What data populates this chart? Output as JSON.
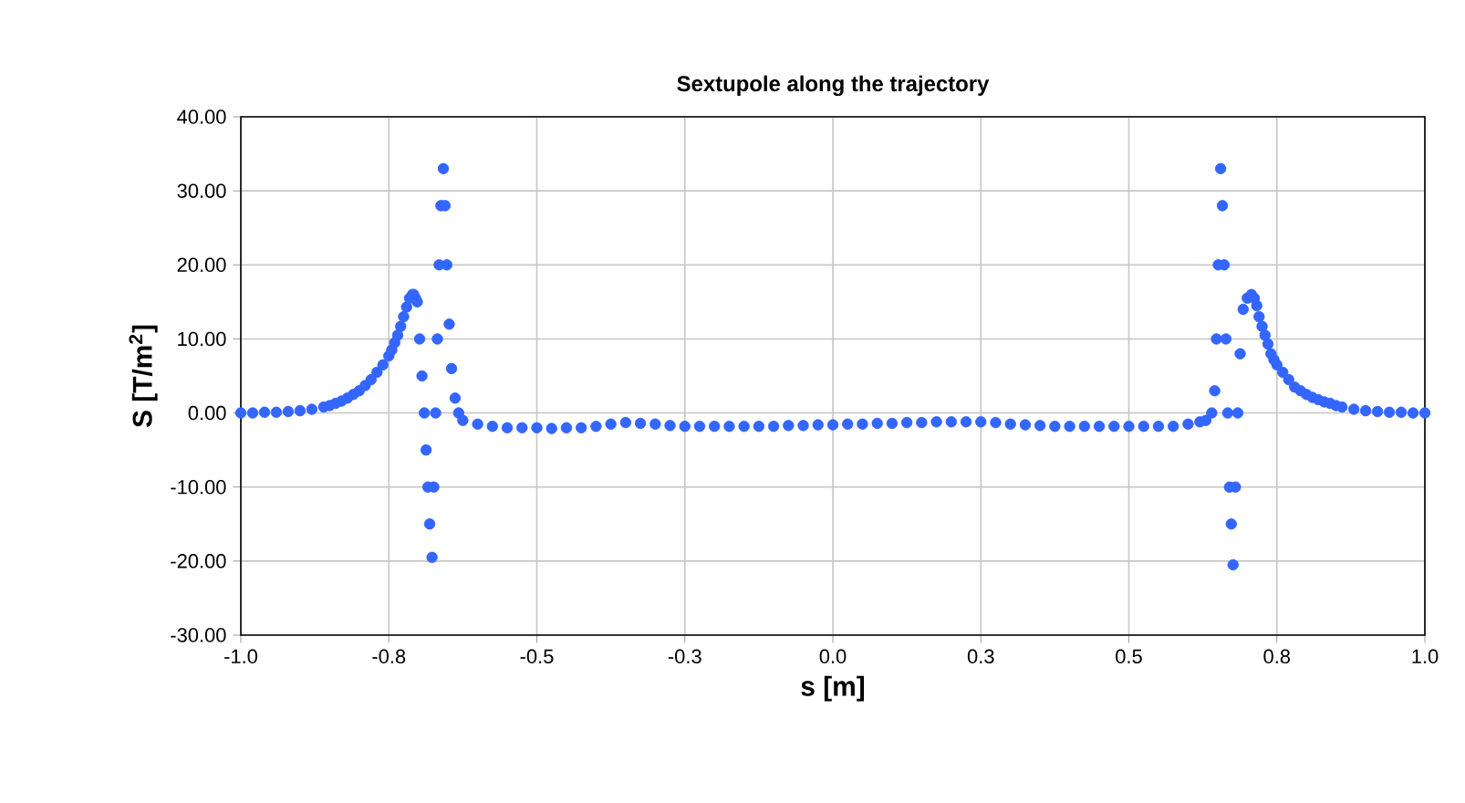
{
  "chart_data": {
    "type": "scatter",
    "title": "Sextupole along the trajectory",
    "xlabel": "s [m]",
    "ylabel": "S [T/m$^{2}$]",
    "xlim": [
      -1,
      1
    ],
    "ylim": [
      -30,
      40
    ],
    "xticks": [
      {
        "value": -1,
        "label": "-1.0"
      },
      {
        "value": -0.75,
        "label": "-0.8"
      },
      {
        "value": -0.5,
        "label": "-0.5"
      },
      {
        "value": -0.25,
        "label": "-0.3"
      },
      {
        "value": 0,
        "label": "0.0"
      },
      {
        "value": 0.25,
        "label": "0.3"
      },
      {
        "value": 0.5,
        "label": "0.5"
      },
      {
        "value": 0.75,
        "label": "0.8"
      },
      {
        "value": 1,
        "label": "1.0"
      }
    ],
    "yticks": [
      {
        "value": -30,
        "label": "-30.00"
      },
      {
        "value": -20,
        "label": "-20.00"
      },
      {
        "value": -10,
        "label": "-10.00"
      },
      {
        "value": 0,
        "label": "0.00"
      },
      {
        "value": 10,
        "label": "10.00"
      },
      {
        "value": 20,
        "label": "20.00"
      },
      {
        "value": 30,
        "label": "30.00"
      },
      {
        "value": 40,
        "label": "40.00"
      }
    ],
    "grid": true,
    "marker": "circle",
    "series": [
      {
        "color": "#3366ff",
        "x": [
          -1.0,
          -0.98,
          -0.96,
          -0.94,
          -0.92,
          -0.9,
          -0.88,
          -0.86,
          -0.85,
          -0.84,
          -0.83,
          -0.82,
          -0.81,
          -0.8,
          -0.79,
          -0.78,
          -0.77,
          -0.76,
          -0.75,
          -0.745,
          -0.74,
          -0.735,
          -0.73,
          -0.725,
          -0.72,
          -0.715,
          -0.71,
          -0.708,
          -0.705,
          -0.702,
          -0.698,
          -0.694,
          -0.69,
          -0.687,
          -0.684,
          -0.681,
          -0.677,
          -0.674,
          -0.671,
          -0.668,
          -0.665,
          -0.662,
          -0.658,
          -0.655,
          -0.652,
          -0.648,
          -0.644,
          -0.638,
          -0.632,
          -0.625,
          -0.6,
          -0.575,
          -0.55,
          -0.525,
          -0.5,
          -0.475,
          -0.45,
          -0.425,
          -0.4,
          -0.375,
          -0.35,
          -0.325,
          -0.3,
          -0.275,
          -0.25,
          -0.225,
          -0.2,
          -0.175,
          -0.15,
          -0.125,
          -0.1,
          -0.075,
          -0.05,
          -0.025,
          0.0,
          0.025,
          0.05,
          0.075,
          0.1,
          0.125,
          0.15,
          0.175,
          0.2,
          0.225,
          0.25,
          0.275,
          0.3,
          0.325,
          0.35,
          0.375,
          0.4,
          0.425,
          0.45,
          0.475,
          0.5,
          0.525,
          0.55,
          0.575,
          0.6,
          0.62,
          0.63,
          0.64,
          0.645,
          0.648,
          0.651,
          0.655,
          0.658,
          0.661,
          0.664,
          0.667,
          0.67,
          0.673,
          0.676,
          0.68,
          0.684,
          0.688,
          0.693,
          0.7,
          0.707,
          0.712,
          0.716,
          0.72,
          0.725,
          0.73,
          0.735,
          0.74,
          0.745,
          0.75,
          0.76,
          0.77,
          0.78,
          0.79,
          0.8,
          0.81,
          0.82,
          0.83,
          0.84,
          0.85,
          0.86,
          0.88,
          0.9,
          0.92,
          0.94,
          0.96,
          0.98,
          1.0
        ],
        "values": [
          0,
          0,
          0.1,
          0.1,
          0.2,
          0.3,
          0.5,
          0.8,
          1,
          1.3,
          1.6,
          2,
          2.5,
          3,
          3.7,
          4.5,
          5.5,
          6.5,
          7.7,
          8.5,
          9.5,
          10.5,
          11.7,
          13,
          14.3,
          15.5,
          16,
          16,
          15.5,
          15,
          10,
          5,
          0,
          -5,
          -10,
          -15,
          -19.5,
          -10,
          0,
          10,
          20,
          28,
          33,
          28,
          20,
          12,
          6,
          2,
          0,
          -1,
          -1.5,
          -1.8,
          -2,
          -2,
          -2,
          -2.1,
          -2,
          -2,
          -1.8,
          -1.5,
          -1.3,
          -1.4,
          -1.5,
          -1.7,
          -1.8,
          -1.8,
          -1.8,
          -1.8,
          -1.8,
          -1.8,
          -1.8,
          -1.7,
          -1.7,
          -1.6,
          -1.6,
          -1.5,
          -1.5,
          -1.4,
          -1.4,
          -1.3,
          -1.3,
          -1.2,
          -1.2,
          -1.2,
          -1.2,
          -1.3,
          -1.5,
          -1.6,
          -1.7,
          -1.8,
          -1.8,
          -1.8,
          -1.8,
          -1.8,
          -1.8,
          -1.8,
          -1.8,
          -1.8,
          -1.5,
          -1.2,
          -1,
          0,
          3,
          10,
          20,
          33,
          28,
          20,
          10,
          0,
          -10,
          -15,
          -20.5,
          -10,
          0,
          8,
          14,
          15.5,
          16,
          15.5,
          14.5,
          13,
          11.7,
          10.5,
          9.3,
          8,
          7.2,
          6.5,
          5.5,
          4.5,
          3.5,
          3,
          2.5,
          2.1,
          1.8,
          1.5,
          1.3,
          1,
          0.8,
          0.5,
          0.3,
          0.2,
          0.1,
          0.1,
          0,
          0
        ]
      }
    ]
  }
}
